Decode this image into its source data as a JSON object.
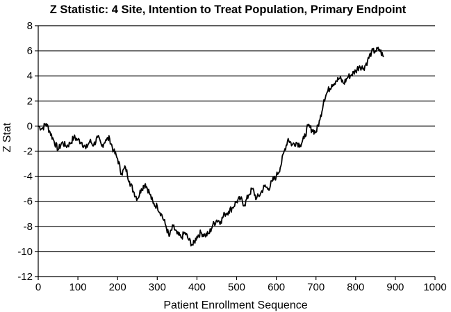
{
  "chart_data": {
    "type": "line",
    "title": "Z Statistic: 4 Site, Intention to Treat Population, Primary Endpoint",
    "xlabel": "Patient Enrollment Sequence",
    "ylabel": "Z Stat",
    "xlim": [
      0,
      1000
    ],
    "ylim": [
      -12,
      8
    ],
    "xticks": [
      0,
      100,
      200,
      300,
      400,
      500,
      600,
      700,
      800,
      900,
      1000
    ],
    "yticks": [
      8,
      6,
      4,
      2,
      0,
      -2,
      -4,
      -6,
      -8,
      -10,
      -12
    ],
    "grid": "horizontal",
    "legend": "none",
    "line_color": "#000000",
    "series": [
      {
        "x": [
          0,
          10,
          20,
          30,
          40,
          50,
          60,
          70,
          80,
          90,
          100,
          110,
          120,
          130,
          140,
          150,
          160,
          170,
          180,
          190,
          200,
          210,
          220,
          230,
          240,
          250,
          260,
          270,
          280,
          290,
          300,
          310,
          320,
          330,
          340,
          350,
          360,
          370,
          380,
          390,
          400,
          410,
          420,
          430,
          440,
          450,
          460,
          470,
          480,
          490,
          500,
          510,
          520,
          530,
          540,
          550,
          560,
          570,
          580,
          590,
          600,
          610,
          620,
          630,
          640,
          650,
          660,
          670,
          680,
          690,
          700,
          710,
          720,
          730,
          740,
          750,
          760,
          770,
          780,
          790,
          800,
          810,
          820,
          830,
          840,
          850,
          860,
          870
        ],
        "y": [
          0.0,
          -0.2,
          0.2,
          -0.5,
          -1.2,
          -1.9,
          -1.3,
          -1.6,
          -1.4,
          -0.9,
          -1.1,
          -1.3,
          -1.8,
          -1.2,
          -1.5,
          -0.9,
          -1.6,
          -1.1,
          -1.0,
          -2.0,
          -2.6,
          -3.8,
          -3.3,
          -4.4,
          -5.2,
          -5.8,
          -5.0,
          -4.6,
          -5.3,
          -6.2,
          -6.4,
          -7.0,
          -7.8,
          -8.8,
          -8.0,
          -8.6,
          -8.9,
          -8.5,
          -9.1,
          -9.5,
          -8.8,
          -8.5,
          -8.7,
          -8.6,
          -7.9,
          -7.5,
          -7.6,
          -7.0,
          -6.8,
          -6.5,
          -6.0,
          -5.8,
          -6.3,
          -5.5,
          -5.0,
          -5.8,
          -5.4,
          -4.8,
          -5.0,
          -4.4,
          -4.0,
          -3.3,
          -2.0,
          -1.0,
          -1.5,
          -1.3,
          -1.5,
          -1.0,
          0.0,
          -0.3,
          -0.5,
          0.5,
          2.1,
          2.8,
          3.3,
          3.6,
          3.8,
          3.4,
          3.9,
          4.1,
          4.4,
          4.8,
          4.6,
          5.2,
          5.9,
          6.0,
          6.1,
          5.5
        ]
      }
    ]
  }
}
